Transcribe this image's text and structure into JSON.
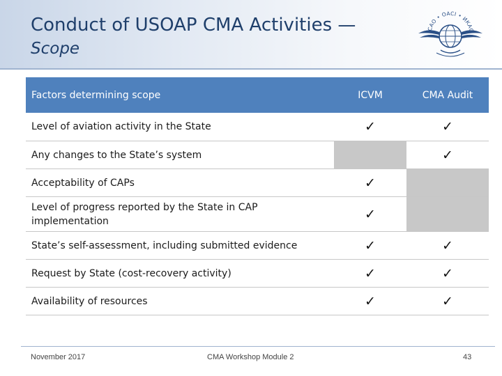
{
  "slide": {
    "title": "Conduct of USOAP CMA Activities —",
    "subtitle": "Scope"
  },
  "logo": {
    "icon": "icao-emblem-icon",
    "text": "ICAO • OACI • ИКАО"
  },
  "table": {
    "headers": {
      "factor": "Factors determining scope",
      "icvm": "ICVM",
      "audit": "CMA Audit"
    },
    "check_mark": "✓",
    "rows": [
      {
        "factor": "Level of aviation activity  in the State",
        "icvm": "✓",
        "audit": "✓"
      },
      {
        "factor": "Any changes to the State’s system",
        "icvm": "",
        "audit": "✓"
      },
      {
        "factor": "Acceptability of CAPs",
        "icvm": "✓",
        "audit": ""
      },
      {
        "factor": "Level of progress reported by the State in CAP implementation",
        "icvm": "✓",
        "audit": ""
      },
      {
        "factor": "State’s self-assessment, including submitted evidence",
        "icvm": "✓",
        "audit": "✓"
      },
      {
        "factor": "Request by State (cost-recovery activity)",
        "icvm": "✓",
        "audit": "✓"
      },
      {
        "factor": "Availability of resources",
        "icvm": "✓",
        "audit": "✓"
      }
    ],
    "colors": {
      "header_bg": "#4f81bd",
      "not_applicable": "#c8c8c8"
    }
  },
  "footer": {
    "date": "November 2017",
    "module": "CMA Workshop Module 2",
    "page": "43"
  }
}
